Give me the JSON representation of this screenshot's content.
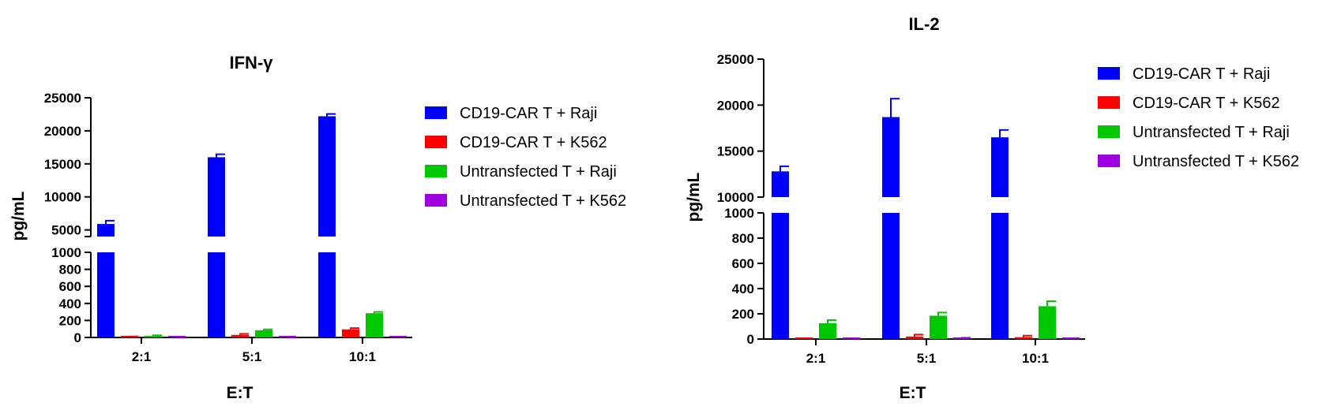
{
  "chart_data": [
    {
      "type": "bar",
      "title": "IFN-γ",
      "xlabel": "E:T",
      "ylabel": "pg/mL",
      "categories": [
        "2:1",
        "5:1",
        "10:1"
      ],
      "y_axis": "broken",
      "y_segments": [
        {
          "range": [
            0,
            1000
          ],
          "ticks": [
            "0",
            "200",
            "400",
            "600",
            "800",
            "1000"
          ]
        },
        {
          "range": [
            4000,
            25000
          ],
          "ticks": [
            "5000",
            "10000",
            "15000",
            "20000",
            "25000"
          ]
        }
      ],
      "series": [
        {
          "name": "CD19-CAR T + Raji",
          "color": "#0000ff",
          "values": [
            5900,
            16000,
            22200
          ],
          "errors": [
            500,
            450,
            350
          ]
        },
        {
          "name": "CD19-CAR T + K562",
          "color": "#ff0000",
          "values": [
            8,
            30,
            95
          ],
          "errors": [
            4,
            12,
            15
          ]
        },
        {
          "name": "Untransfected T + Raji",
          "color": "#00c800",
          "values": [
            20,
            85,
            285
          ],
          "errors": [
            5,
            10,
            15
          ]
        },
        {
          "name": "Untransfected T + K562",
          "color": "#a000e0",
          "values": [
            3,
            3,
            6
          ],
          "errors": [
            1,
            1,
            2
          ]
        }
      ],
      "legend": "right",
      "grid": false
    },
    {
      "type": "bar",
      "title": "IL-2",
      "xlabel": "E:T",
      "ylabel": "pg/mL",
      "categories": [
        "2:1",
        "5:1",
        "10:1"
      ],
      "y_axis": "broken",
      "y_segments": [
        {
          "range": [
            0,
            1000
          ],
          "ticks": [
            "0",
            "200",
            "400",
            "600",
            "800",
            "1000"
          ]
        },
        {
          "range": [
            10000,
            25000
          ],
          "ticks": [
            "10000",
            "15000",
            "20000",
            "25000"
          ]
        }
      ],
      "series": [
        {
          "name": "CD19-CAR T + Raji",
          "color": "#0000ff",
          "values": [
            12800,
            18700,
            16500
          ],
          "errors": [
            550,
            2000,
            800
          ]
        },
        {
          "name": "CD19-CAR T + K562",
          "color": "#ff0000",
          "values": [
            0,
            20,
            15
          ],
          "errors": [
            0,
            15,
            12
          ]
        },
        {
          "name": "Untransfected T + Raji",
          "color": "#00c800",
          "values": [
            125,
            185,
            260
          ],
          "errors": [
            25,
            25,
            40
          ]
        },
        {
          "name": "Untransfected T + K562",
          "color": "#a000e0",
          "values": [
            3,
            8,
            4
          ],
          "errors": [
            1,
            2,
            1
          ]
        }
      ],
      "legend": "right",
      "grid": false
    }
  ]
}
